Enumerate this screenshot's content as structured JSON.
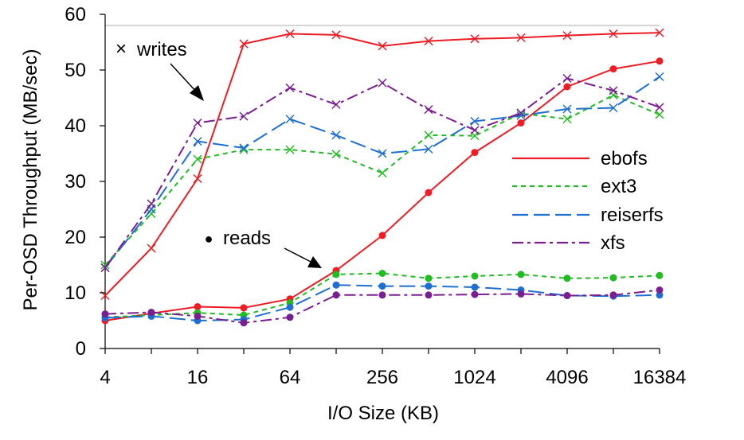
{
  "chart_data": {
    "type": "line",
    "title": "",
    "xlabel": "I/O Size (KB)",
    "ylabel": "Per-OSD Throughput (MB/sec)",
    "xscale": "log2",
    "x": [
      4,
      8,
      16,
      32,
      64,
      128,
      256,
      512,
      1024,
      2048,
      4096,
      8192,
      16384
    ],
    "xticks": [
      "4",
      "16",
      "64",
      "256",
      "1024",
      "4096",
      "16384"
    ],
    "ylim": [
      0,
      60
    ],
    "yticks": [
      "0",
      "10",
      "20",
      "30",
      "40",
      "50",
      "60"
    ],
    "reference_line": 58,
    "legend": {
      "position": "right",
      "entries": [
        "ebofs",
        "ext3",
        "reiserfs",
        "xfs"
      ]
    },
    "annotations": [
      {
        "id": "writes",
        "text": "writes",
        "symbol": "×"
      },
      {
        "id": "reads",
        "text": "reads",
        "symbol": "●"
      }
    ],
    "series": [
      {
        "name": "ebofs",
        "color": "#ee1c25",
        "style": "solid",
        "writes": [
          9.5,
          18,
          30.5,
          54.7,
          56.5,
          56.3,
          54.3,
          55.2,
          55.6,
          55.8,
          56.2,
          56.5,
          56.7
        ],
        "reads": [
          5,
          6.3,
          7.5,
          7.3,
          8.9,
          14,
          20.3,
          28,
          35.2,
          40.5,
          47,
          50.2,
          51.6
        ]
      },
      {
        "name": "ext3",
        "color": "#22bb22",
        "style": "dotted",
        "writes": [
          15,
          24.2,
          34,
          35.7,
          35.7,
          34.9,
          31.5,
          38.3,
          38.2,
          42.2,
          41.2,
          45.5,
          42
        ],
        "reads": [
          5.6,
          6,
          6.4,
          6,
          8.2,
          13.3,
          13.5,
          12.6,
          13,
          13.3,
          12.6,
          12.7,
          13.1
        ]
      },
      {
        "name": "reiserfs",
        "color": "#1f6fd0",
        "style": "longdash",
        "writes": [
          14.5,
          25,
          37.2,
          36,
          41.2,
          38.3,
          35,
          35.8,
          40.8,
          41.8,
          43,
          43.2,
          48.8
        ],
        "reads": [
          5.5,
          5.8,
          5,
          5.2,
          7.4,
          11.4,
          11.2,
          11.2,
          11,
          10.5,
          9.5,
          9.4,
          9.6
        ]
      },
      {
        "name": "xfs",
        "color": "#7a1f8f",
        "style": "dashdot",
        "writes": [
          14.5,
          26,
          40.5,
          41.7,
          46.8,
          43.8,
          47.7,
          42.9,
          39.2,
          42.3,
          48.5,
          46.3,
          43.3
        ],
        "reads": [
          6.2,
          6.5,
          5.8,
          4.6,
          5.6,
          9.6,
          9.6,
          9.6,
          9.7,
          9.8,
          9.5,
          9.6,
          10.5
        ]
      }
    ]
  }
}
